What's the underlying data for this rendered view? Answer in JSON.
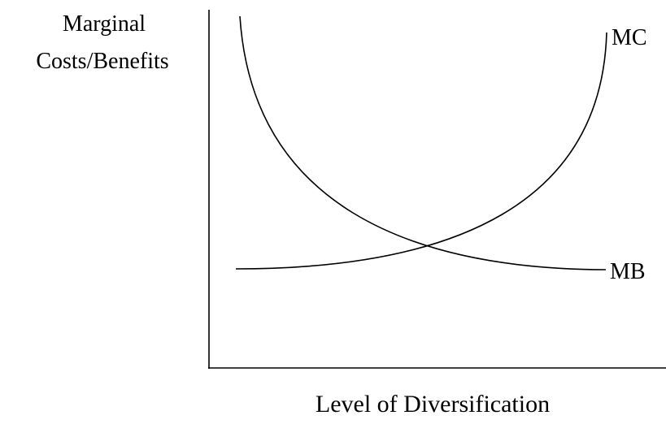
{
  "y_axis_label": [
    "Marginal",
    "Costs/Benefits"
  ],
  "x_axis_label": "Level of Diversification",
  "curves": [
    {
      "label": "MC"
    },
    {
      "label": "MB"
    }
  ]
}
